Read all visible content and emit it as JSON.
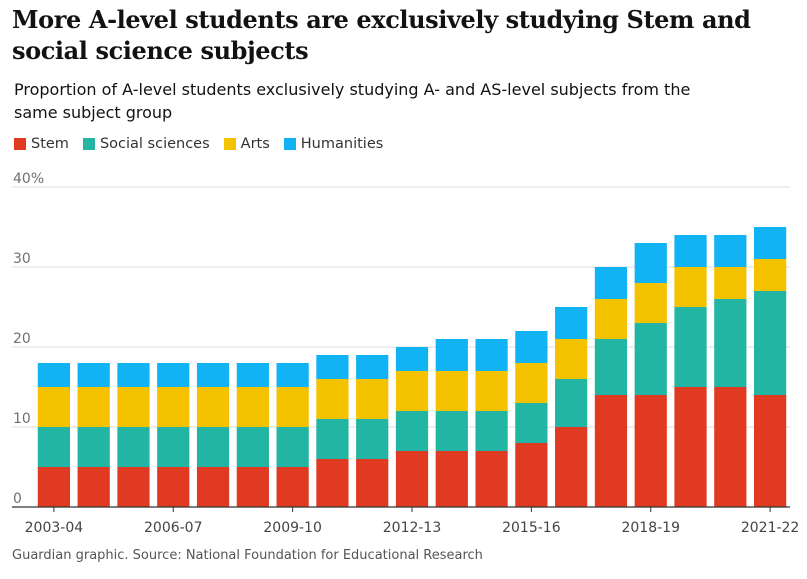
{
  "header": {
    "title": "More A-level students are exclusively studying Stem and social science subjects",
    "subtitle": "Proportion of A-level students exclusively studying A- and AS-level subjects from the same subject group"
  },
  "legend": {
    "items": [
      {
        "label": "Stem",
        "color": "#e03a22"
      },
      {
        "label": "Social sciences",
        "color": "#22b5a3"
      },
      {
        "label": "Arts",
        "color": "#f5c200"
      },
      {
        "label": "Humanities",
        "color": "#12b3f5"
      }
    ]
  },
  "footer": {
    "source": "Guardian graphic. Source: National Foundation for Educational Research"
  },
  "chart_data": {
    "type": "bar",
    "stacked": true,
    "title": "More A-level students are exclusively studying Stem and social science subjects",
    "subtitle": "Proportion of A-level students exclusively studying A- and AS-level subjects from the same subject group",
    "xlabel": "",
    "ylabel": "",
    "ylim": [
      0,
      40
    ],
    "yticks": [
      0,
      10,
      20,
      30,
      40
    ],
    "ytick_labels": [
      "0",
      "10",
      "20",
      "30",
      "40%"
    ],
    "categories": [
      "2003-04",
      "2004-05",
      "2005-06",
      "2006-07",
      "2007-08",
      "2008-09",
      "2009-10",
      "2010-11",
      "2011-12",
      "2012-13",
      "2013-14",
      "2014-15",
      "2015-16",
      "2016-17",
      "2017-18",
      "2018-19",
      "2019-20",
      "2020-21",
      "2021-22"
    ],
    "xtick_labels": [
      "2003-04",
      "2006-07",
      "2009-10",
      "2012-13",
      "2015-16",
      "2018-19",
      "2021-22"
    ],
    "grid": true,
    "legend_position": "top-left",
    "series": [
      {
        "name": "Stem",
        "color": "#e03a22",
        "values": [
          5,
          5,
          5,
          5,
          5,
          5,
          5,
          6,
          6,
          7,
          7,
          7,
          8,
          10,
          14,
          14,
          15,
          15,
          14
        ]
      },
      {
        "name": "Social sciences",
        "color": "#22b5a3",
        "values": [
          5,
          5,
          5,
          5,
          5,
          5,
          5,
          5,
          5,
          5,
          5,
          5,
          5,
          6,
          7,
          9,
          10,
          11,
          13
        ]
      },
      {
        "name": "Arts",
        "color": "#f5c200",
        "values": [
          5,
          5,
          5,
          5,
          5,
          5,
          5,
          5,
          5,
          5,
          5,
          5,
          5,
          5,
          5,
          5,
          5,
          4,
          4
        ]
      },
      {
        "name": "Humanities",
        "color": "#12b3f5",
        "values": [
          3,
          3,
          3,
          3,
          3,
          3,
          3,
          3,
          3,
          3,
          4,
          4,
          4,
          4,
          4,
          5,
          4,
          4,
          4
        ]
      }
    ]
  }
}
